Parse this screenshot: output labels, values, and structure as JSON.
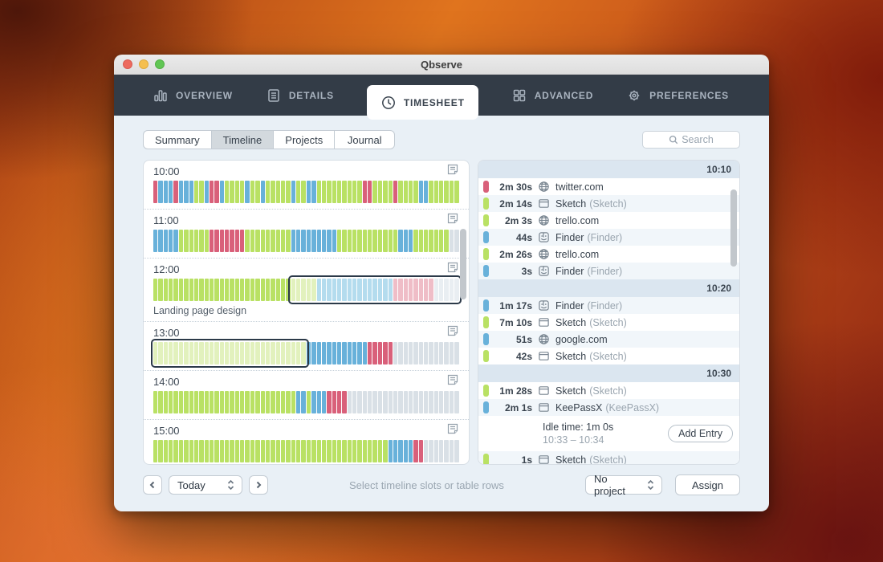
{
  "window": {
    "title": "Qbserve"
  },
  "nav": {
    "tabs": [
      {
        "label": "OVERVIEW"
      },
      {
        "label": "DETAILS"
      },
      {
        "label": "TIMESHEET",
        "active": true
      },
      {
        "label": "ADVANCED"
      },
      {
        "label": "PREFERENCES"
      }
    ]
  },
  "toolbar": {
    "segments": [
      {
        "label": "Summary",
        "selected": false
      },
      {
        "label": "Timeline",
        "selected": true
      },
      {
        "label": "Projects",
        "selected": false
      },
      {
        "label": "Journal",
        "selected": false
      }
    ],
    "search_placeholder": "Search"
  },
  "colors": {
    "productive_green": "#b9e164",
    "neutral_blue": "#68b1da",
    "distracting_red": "#d9607a",
    "idle_gray": "#d9e0e6",
    "navbar": "#333c47",
    "selection_border": "#2c3a49"
  },
  "timeline": {
    "hours": [
      {
        "time": "10:00",
        "pattern": "RBBBRBBBGGBRRBGGGGBGGBGGGGGBGGBBGGGGGGGGGRRGGGGRGGGGBBGGGGGG"
      },
      {
        "time": "11:00",
        "pattern": "BBBBBGGGGGGRRRRRRRGGGGGGGGGBBBBBBBBBGGGGGGGGGGGGBBBGGGGGGGII"
      },
      {
        "time": "12:00",
        "pattern": "GGGGGGGGGGGGGGGGGGGGGGGGGGGGGGGGBBBBBBBBBBBBBBBRRRRRRRRIIIII",
        "selection": {
          "start": 27,
          "end": 60
        },
        "project": "Landing page design"
      },
      {
        "time": "13:00",
        "pattern": "GGGGGGGGGGGGGGGGGGGGGGGGGGGGGGBBBBBBBBBBBBRRRRRIIIIIIIIIIIII",
        "selection": {
          "start": 0,
          "end": 30
        }
      },
      {
        "time": "14:00",
        "pattern": "GGGGGGGGGGGGGGGGGGGGGGGGGGGGBBGBBBRRRRIIIIIIIIIIIIIIIIIIIIII"
      },
      {
        "time": "15:00",
        "pattern": "GGGGGGGGGGGGGGGGGGGGGGGGGGGGGGGGGGGGGGGGGGGGGGBBBBBRRIIIIIII"
      }
    ]
  },
  "entries": {
    "groups": [
      {
        "time": "10:10",
        "start_shaded": false,
        "rows": [
          {
            "color": "r",
            "duration": "2m 30s",
            "icon": "globe",
            "name": "twitter.com",
            "detail": ""
          },
          {
            "color": "g",
            "duration": "2m 14s",
            "icon": "app",
            "name": "Sketch",
            "detail": "(Sketch)"
          },
          {
            "color": "g",
            "duration": "2m 3s",
            "icon": "globe",
            "name": "trello.com",
            "detail": ""
          },
          {
            "color": "b",
            "duration": "44s",
            "icon": "finder",
            "name": "Finder",
            "detail": "(Finder)"
          },
          {
            "color": "g",
            "duration": "2m 26s",
            "icon": "globe",
            "name": "trello.com",
            "detail": ""
          },
          {
            "color": "b",
            "duration": "3s",
            "icon": "finder",
            "name": "Finder",
            "detail": "(Finder)"
          }
        ]
      },
      {
        "time": "10:20",
        "start_shaded": true,
        "rows": [
          {
            "color": "b",
            "duration": "1m 17s",
            "icon": "finder",
            "name": "Finder",
            "detail": "(Finder)"
          },
          {
            "color": "g",
            "duration": "7m 10s",
            "icon": "app",
            "name": "Sketch",
            "detail": "(Sketch)"
          },
          {
            "color": "b",
            "duration": "51s",
            "icon": "globe",
            "name": "google.com",
            "detail": ""
          },
          {
            "color": "g",
            "duration": "42s",
            "icon": "app",
            "name": "Sketch",
            "detail": "(Sketch)"
          }
        ]
      },
      {
        "time": "10:30",
        "start_shaded": false,
        "rows": [
          {
            "color": "g",
            "duration": "1m 28s",
            "icon": "app",
            "name": "Sketch",
            "detail": "(Sketch)"
          },
          {
            "color": "b",
            "duration": "2m 1s",
            "icon": "app",
            "name": "KeePassX",
            "detail": "(KeePassX)"
          },
          {
            "type": "idle",
            "line1": "Idle time: 1m 0s",
            "line2": "10:33 – 10:34",
            "button": "Add Entry"
          },
          {
            "color": "g",
            "duration": "1s",
            "icon": "app",
            "name": "Sketch",
            "detail": "(Sketch)"
          }
        ]
      }
    ]
  },
  "bottombar": {
    "date_value": "Today",
    "hint": "Select timeline slots or table rows",
    "project_value": "No project",
    "assign_label": "Assign"
  }
}
